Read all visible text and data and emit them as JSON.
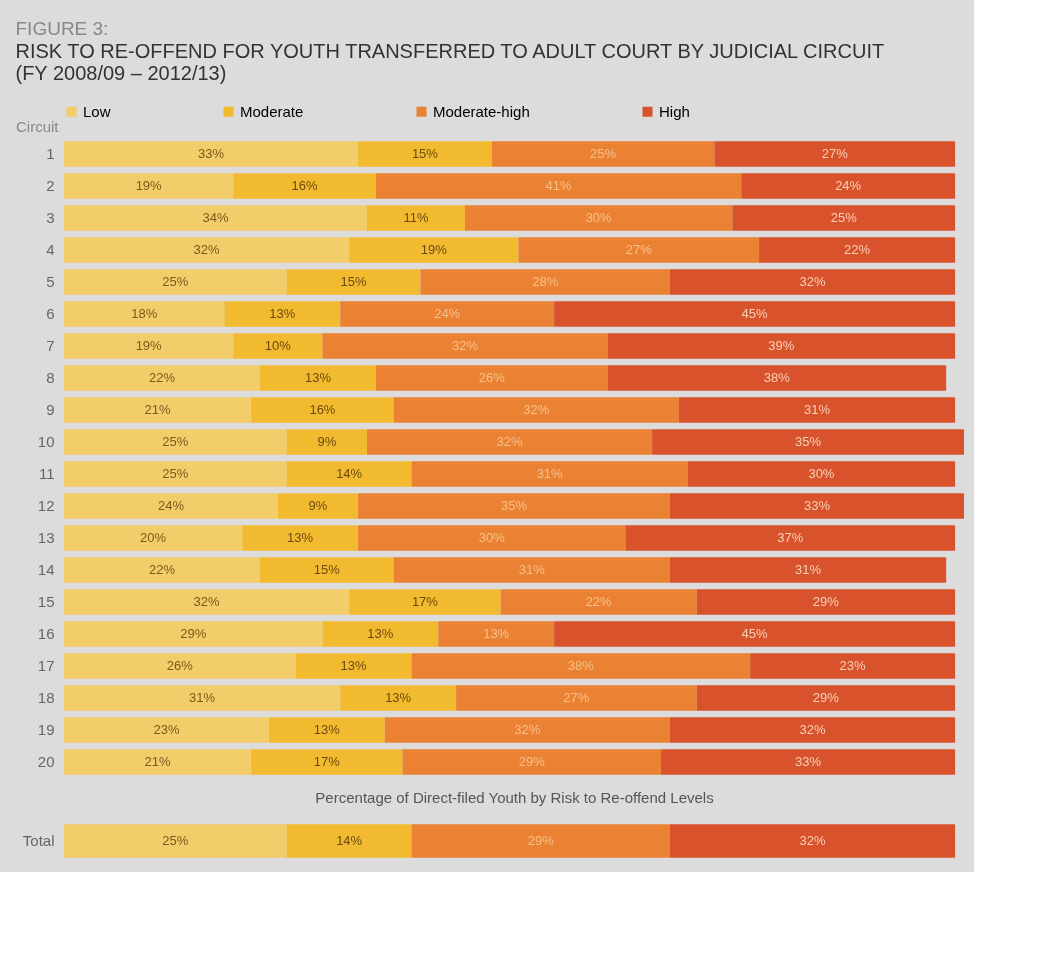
{
  "chart_data": [
    {
      "type": "bar",
      "orientation": "horizontal",
      "stacked": true,
      "title": "FIGURE 3:",
      "subtitle": "RISK TO RE-OFFEND FOR YOUTH TRANSFERRED TO ADULT COURT BY JUDICIAL CIRCUIT (FY 2008/09 – 2012/13)",
      "ylabel": "Circuit",
      "xlabel": "Percentage of Direct-filed Youth by Risk to Re-offend Levels",
      "categories": [
        "1",
        "2",
        "3",
        "4",
        "5",
        "6",
        "7",
        "8",
        "9",
        "10",
        "11",
        "12",
        "13",
        "14",
        "15",
        "16",
        "17",
        "18",
        "19",
        "20"
      ],
      "series": [
        {
          "name": "Low",
          "color": "#f3cd6a",
          "values": [
            33,
            19,
            34,
            32,
            25,
            18,
            19,
            22,
            21,
            25,
            25,
            24,
            20,
            22,
            32,
            29,
            26,
            31,
            23,
            21
          ],
          "value_labels": [
            "33%",
            "19%",
            "34%",
            "32%",
            "25%",
            "18%",
            "19%",
            "22%",
            "21%",
            "25%",
            "25%",
            "24%",
            "20%",
            "22%",
            "32%",
            "29%",
            "26%",
            "31%",
            "23%",
            "21%"
          ]
        },
        {
          "name": "Moderate",
          "color": "#f2bb2f",
          "values": [
            15,
            16,
            11,
            19,
            15,
            13,
            10,
            13,
            16,
            9,
            14,
            9,
            13,
            15,
            17,
            13,
            13,
            13,
            13,
            17
          ],
          "value_labels": [
            "15%",
            "16%",
            "11%",
            "19%",
            "15%",
            "13%",
            "10%",
            "13%",
            "16%",
            "9%",
            "14%",
            "9%",
            "13%",
            "15%",
            "17%",
            "13%",
            "13%",
            "13%",
            "13%",
            "17%"
          ]
        },
        {
          "name": "Moderate-high",
          "color": "#eb8233",
          "values": [
            25,
            41,
            30,
            27,
            28,
            24,
            32,
            26,
            32,
            32,
            31,
            35,
            30,
            31,
            22,
            13,
            38,
            27,
            32,
            29
          ],
          "value_labels": [
            "25%",
            "41%",
            "30%",
            "27%",
            "28%",
            "24%",
            "32%",
            "26%",
            "32%",
            "32%",
            "31%",
            "35%",
            "30%",
            "31%",
            "22%",
            "13%",
            "38%",
            "27%",
            "32%",
            "29%"
          ]
        },
        {
          "name": "High",
          "color": "#d8532c",
          "values": [
            27,
            24,
            25,
            22,
            32,
            45,
            39,
            38,
            31,
            35,
            30,
            33,
            37,
            31,
            29,
            45,
            23,
            29,
            32,
            33
          ],
          "value_labels": [
            "27%",
            "24%",
            "25%",
            "22%",
            "32%",
            "45%",
            "39%",
            "38%",
            "31%",
            "35%",
            "30%",
            "33%",
            "37%",
            "31%",
            "29%",
            "45%",
            "23%",
            "29%",
            "32%",
            "33%"
          ]
        }
      ],
      "legend": "top",
      "tick_labels": "y"
    },
    {
      "type": "bar",
      "orientation": "horizontal",
      "stacked": true,
      "categories": [
        "Total"
      ],
      "series": [
        {
          "color": "#f3cd6a",
          "values": [
            25
          ],
          "value_labels": [
            "25%"
          ]
        },
        {
          "color": "#f2bb2f",
          "values": [
            14
          ],
          "value_labels": [
            "14%"
          ]
        },
        {
          "color": "#eb8233",
          "values": [
            29
          ],
          "value_labels": [
            "29%"
          ]
        },
        {
          "color": "#d8532c",
          "values": [
            32
          ],
          "value_labels": [
            "32%"
          ]
        }
      ],
      "tick_labels": "y"
    }
  ]
}
